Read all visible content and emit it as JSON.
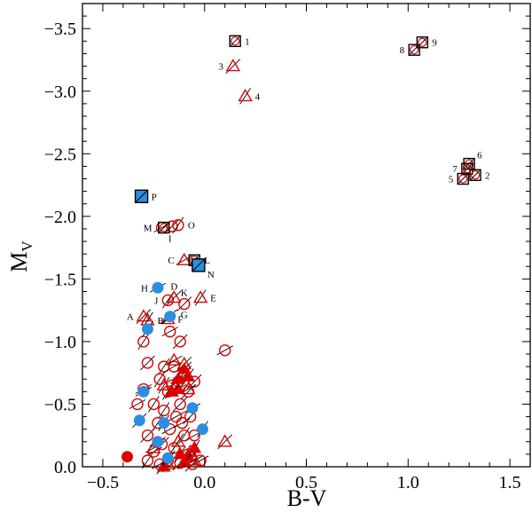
{
  "chart_data": {
    "type": "scatter",
    "title": "",
    "xlabel": "B-V",
    "ylabel_main": "M",
    "ylabel_sub": "V",
    "xlim": [
      -0.6,
      1.6
    ],
    "ylim": [
      0.0,
      -3.7
    ],
    "y_inverted": true,
    "xticks": [
      -0.5,
      0.0,
      0.5,
      1.0,
      1.5
    ],
    "xtick_labels": [
      "−0.5",
      "0.0",
      "0.5",
      "1.0",
      "1.5"
    ],
    "yticks": [
      -3.5,
      -3.0,
      -2.5,
      -2.0,
      -1.5,
      -1.0,
      -0.5,
      0.0
    ],
    "ytick_labels": [
      "−3.5",
      "−3.0",
      "−2.5",
      "−2.0",
      "−1.5",
      "−1.0",
      "−0.5",
      "0.0"
    ],
    "colors": {
      "red": "#dd0000",
      "blue": "#2a8fe0",
      "black": "#000000"
    },
    "series": [
      {
        "name": "open red circles",
        "marker": "circle-open",
        "points": [
          [
            -0.16,
            -1.92
          ],
          [
            -0.13,
            -1.93
          ],
          [
            -0.21,
            -1.91
          ],
          [
            -0.1,
            -1.3
          ],
          [
            -0.18,
            -1.33
          ],
          [
            -0.17,
            -1.08
          ],
          [
            -0.12,
            -1.0
          ],
          [
            -0.3,
            -1.0
          ],
          [
            0.1,
            -0.93
          ],
          [
            -0.28,
            -0.83
          ],
          [
            -0.2,
            -0.8
          ],
          [
            -0.15,
            -0.8
          ],
          [
            -0.1,
            -0.75
          ],
          [
            -0.22,
            -0.7
          ],
          [
            -0.13,
            -0.68
          ],
          [
            -0.05,
            -0.68
          ],
          [
            -0.18,
            -0.6
          ],
          [
            -0.3,
            -0.62
          ],
          [
            -0.08,
            -0.6
          ],
          [
            -0.25,
            -0.5
          ],
          [
            -0.33,
            -0.5
          ],
          [
            -0.12,
            -0.5
          ],
          [
            -0.2,
            -0.45
          ],
          [
            -0.14,
            -0.4
          ],
          [
            -0.07,
            -0.4
          ],
          [
            -0.23,
            -0.35
          ],
          [
            -0.17,
            -0.3
          ],
          [
            -0.28,
            -0.25
          ],
          [
            -0.1,
            -0.25
          ],
          [
            -0.05,
            -0.25
          ],
          [
            -0.21,
            -0.18
          ],
          [
            -0.15,
            -0.15
          ],
          [
            -0.25,
            -0.12
          ],
          [
            -0.08,
            -0.1
          ],
          [
            -0.18,
            -0.05
          ],
          [
            -0.02,
            -0.05
          ],
          [
            -0.12,
            -0.03
          ],
          [
            -0.28,
            -0.05
          ],
          [
            -0.22,
            -0.02
          ],
          [
            -0.06,
            -0.02
          ],
          [
            -0.16,
            -0.65
          ],
          [
            -0.11,
            -0.35
          ]
        ]
      },
      {
        "name": "open red triangles",
        "marker": "triangle-open",
        "points": [
          [
            0.14,
            -3.2
          ],
          [
            0.2,
            -2.96
          ],
          [
            -0.1,
            -1.65
          ],
          [
            -0.3,
            -1.2
          ],
          [
            -0.28,
            -1.17
          ],
          [
            -0.18,
            -1.18
          ],
          [
            -0.15,
            -1.35
          ],
          [
            -0.02,
            -1.35
          ],
          [
            -0.15,
            -0.85
          ],
          [
            -0.1,
            -0.82
          ],
          [
            -0.2,
            -0.65
          ],
          [
            -0.08,
            -0.62
          ],
          [
            0.1,
            -0.2
          ],
          [
            -0.13,
            -0.2
          ],
          [
            -0.25,
            -0.15
          ],
          [
            -0.07,
            -0.12
          ],
          [
            -0.18,
            -0.02
          ],
          [
            -0.05,
            -0.05
          ]
        ]
      },
      {
        "name": "filled red triangles",
        "marker": "triangle-filled",
        "points": [
          [
            -0.1,
            -0.78
          ],
          [
            -0.08,
            -0.72
          ],
          [
            -0.13,
            -0.62
          ],
          [
            -0.16,
            -0.6
          ],
          [
            -0.12,
            -0.1
          ],
          [
            -0.08,
            -0.08
          ],
          [
            -0.2,
            0.0
          ],
          [
            -0.05,
            -0.15
          ],
          [
            -0.13,
            -0.7
          ],
          [
            -0.1,
            -0.04
          ]
        ]
      },
      {
        "name": "filled red circles",
        "marker": "circle-filled-red",
        "points": [
          [
            -0.38,
            -0.08
          ]
        ]
      },
      {
        "name": "filled blue circles",
        "marker": "circle-filled-blue",
        "points": [
          [
            -0.23,
            -1.43
          ],
          [
            -0.17,
            -1.2
          ],
          [
            -0.28,
            -1.1
          ],
          [
            -0.3,
            -0.6
          ],
          [
            -0.32,
            -0.37
          ],
          [
            -0.2,
            -0.35
          ],
          [
            -0.23,
            -0.2
          ],
          [
            -0.18,
            -0.07
          ],
          [
            -0.01,
            -0.3
          ],
          [
            -0.06,
            -0.47
          ]
        ]
      },
      {
        "name": "open squares (labelled stars)",
        "marker": "square-open",
        "points": [
          [
            0.15,
            -3.4
          ],
          [
            1.03,
            -3.33
          ],
          [
            1.07,
            -3.39
          ],
          [
            1.3,
            -2.42
          ],
          [
            1.29,
            -2.38
          ],
          [
            1.27,
            -2.3
          ],
          [
            1.33,
            -2.33
          ],
          [
            -0.05,
            -1.65
          ],
          [
            -0.2,
            -1.91
          ]
        ]
      },
      {
        "name": "filled blue squares",
        "marker": "square-filled-blue",
        "points": [
          [
            -0.31,
            -2.16
          ],
          [
            -0.03,
            -1.61
          ]
        ]
      }
    ],
    "annotations": [
      {
        "text": "1",
        "x": 0.15,
        "y": -3.4,
        "pos": "right"
      },
      {
        "text": "3",
        "x": 0.14,
        "y": -3.2,
        "pos": "left"
      },
      {
        "text": "4",
        "x": 0.2,
        "y": -2.96,
        "pos": "right"
      },
      {
        "text": "8",
        "x": 1.03,
        "y": -3.33,
        "pos": "left"
      },
      {
        "text": "9",
        "x": 1.07,
        "y": -3.39,
        "pos": "right"
      },
      {
        "text": "6",
        "x": 1.3,
        "y": -2.42,
        "pos": "upright"
      },
      {
        "text": "7",
        "x": 1.29,
        "y": -2.38,
        "pos": "left"
      },
      {
        "text": "5",
        "x": 1.27,
        "y": -2.3,
        "pos": "left"
      },
      {
        "text": "2",
        "x": 1.33,
        "y": -2.33,
        "pos": "right"
      },
      {
        "text": "P",
        "x": -0.31,
        "y": -2.16,
        "pos": "right"
      },
      {
        "text": "M",
        "x": -0.21,
        "y": -1.91,
        "pos": "left"
      },
      {
        "text": "I",
        "x": -0.17,
        "y": -1.91,
        "pos": "below"
      },
      {
        "text": "O",
        "x": -0.13,
        "y": -1.93,
        "pos": "right"
      },
      {
        "text": "C",
        "x": -0.1,
        "y": -1.65,
        "pos": "left"
      },
      {
        "text": "L",
        "x": -0.05,
        "y": -1.65,
        "pos": "right"
      },
      {
        "text": "N",
        "x": -0.03,
        "y": -1.61,
        "pos": "belowright"
      },
      {
        "text": "H",
        "x": -0.23,
        "y": -1.43,
        "pos": "left"
      },
      {
        "text": "D",
        "x": -0.15,
        "y": -1.35,
        "pos": "above"
      },
      {
        "text": "K",
        "x": -0.1,
        "y": -1.3,
        "pos": "above"
      },
      {
        "text": "E",
        "x": -0.02,
        "y": -1.35,
        "pos": "right"
      },
      {
        "text": "J",
        "x": -0.18,
        "y": -1.33,
        "pos": "left"
      },
      {
        "text": "G",
        "x": -0.1,
        "y": -1.3,
        "pos": "below"
      },
      {
        "text": "A",
        "x": -0.3,
        "y": -1.2,
        "pos": "left"
      },
      {
        "text": "B",
        "x": -0.28,
        "y": -1.17,
        "pos": "right"
      },
      {
        "text": "F",
        "x": -0.18,
        "y": -1.18,
        "pos": "right"
      }
    ]
  }
}
